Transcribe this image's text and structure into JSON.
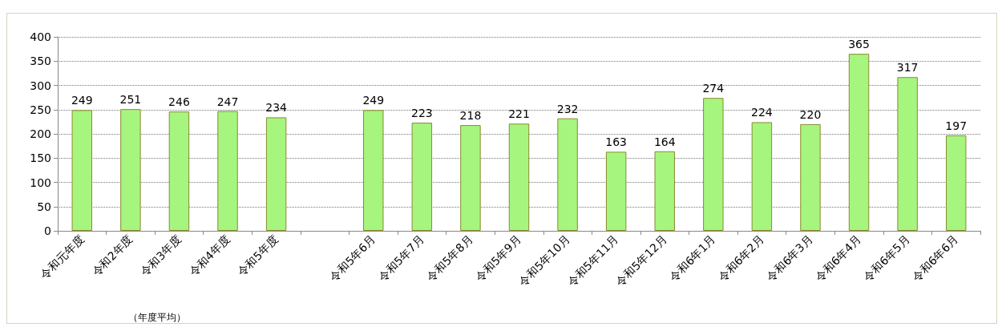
{
  "chart_data": {
    "type": "bar",
    "categories": [
      "令和元年度",
      "令和2年度",
      "令和3年度",
      "令和4年度",
      "令和5年度",
      null,
      "令和5年6月",
      "令和5年7月",
      "令和5年8月",
      "令和5年9月",
      "令和5年10月",
      "令和5年11月",
      "令和5年12月",
      "令和6年1月",
      "令和6年2月",
      "令和6年3月",
      "令和6年4月",
      "令和6年5月",
      "令和6年6月"
    ],
    "values": [
      249,
      251,
      246,
      247,
      234,
      null,
      249,
      223,
      218,
      221,
      232,
      163,
      164,
      274,
      224,
      220,
      365,
      317,
      197
    ],
    "color": "#a6f57e",
    "ylim": [
      0,
      400
    ],
    "yticks": [
      0,
      50,
      100,
      150,
      200,
      250,
      300,
      350,
      400
    ],
    "grid": "y",
    "data_labels": true,
    "annotations": [
      "（年度平均）"
    ]
  }
}
